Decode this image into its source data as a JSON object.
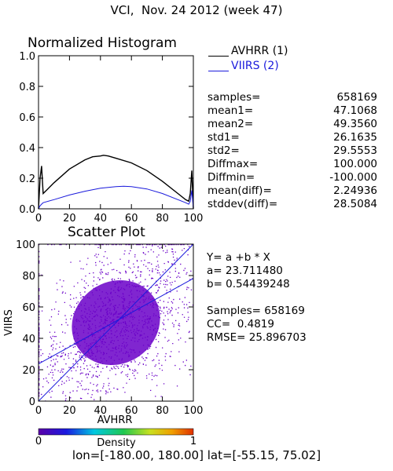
{
  "title": "VCI,  Nov. 24 2012 (week 47)",
  "histogram": {
    "title": "Normalized Histogram",
    "legend": [
      {
        "label": "AVHRR (1)",
        "color": "#000000"
      },
      {
        "label": "VIIRS (2)",
        "color": "#1a1adc"
      }
    ],
    "stats": [
      {
        "label": "samples=",
        "value": "658169"
      },
      {
        "label": "mean1=",
        "value": "47.1068"
      },
      {
        "label": "mean2=",
        "value": "49.3560"
      },
      {
        "label": "std1=",
        "value": "26.1635"
      },
      {
        "label": "std2=",
        "value": "29.5553"
      },
      {
        "label": "Diffmax=",
        "value": "100.000"
      },
      {
        "label": "Diffmin=",
        "value": "-100.000"
      },
      {
        "label": "mean(diff)=",
        "value": "2.24936"
      },
      {
        "label": "stddev(diff)=",
        "value": "28.5084"
      }
    ]
  },
  "scatter": {
    "title": "Scatter Plot",
    "regression": {
      "equation": "Y= a +b * X",
      "a": "a= 23.711480",
      "b": "b= 0.54439248",
      "samples": "Samples= 658169",
      "cc": "CC=  0.4819",
      "rmse": "RMSE= 25.896703"
    },
    "colorbar": {
      "label": "Density",
      "min": "0",
      "max": "1"
    }
  },
  "footer": "lon=[-180.00, 180.00] lat=[-55.15, 75.02]",
  "chart_data": [
    {
      "type": "line",
      "title": "Normalized Histogram",
      "xlim": [
        0,
        100
      ],
      "ylim": [
        0,
        1.0
      ],
      "xticks": [
        "0",
        "20",
        "40",
        "60",
        "80",
        "100"
      ],
      "yticks": [
        "0.0",
        "0.2",
        "0.4",
        "0.6",
        "0.8",
        "1.0"
      ],
      "series": [
        {
          "name": "AVHRR (1)",
          "color": "#000000",
          "x": [
            0,
            1,
            2,
            3,
            5,
            10,
            20,
            30,
            35,
            40,
            42,
            45,
            50,
            60,
            70,
            80,
            90,
            95,
            97,
            98,
            99,
            100
          ],
          "y": [
            0.0,
            0.2,
            0.28,
            0.1,
            0.12,
            0.17,
            0.26,
            0.32,
            0.34,
            0.345,
            0.35,
            0.345,
            0.33,
            0.3,
            0.25,
            0.18,
            0.1,
            0.06,
            0.05,
            0.1,
            0.25,
            0.0
          ]
        },
        {
          "name": "VIIRS (2)",
          "color": "#1a1adc",
          "x": [
            0,
            1,
            2,
            3,
            10,
            20,
            30,
            40,
            50,
            55,
            60,
            70,
            80,
            90,
            95,
            97,
            98,
            99,
            100
          ],
          "y": [
            0.0,
            0.02,
            0.03,
            0.04,
            0.06,
            0.09,
            0.115,
            0.135,
            0.145,
            0.147,
            0.145,
            0.13,
            0.1,
            0.06,
            0.04,
            0.03,
            0.05,
            0.12,
            0.0
          ]
        }
      ]
    },
    {
      "type": "scatter",
      "title": "Scatter Plot",
      "xlabel": "AVHRR",
      "ylabel": "VIIRS",
      "xlim": [
        0,
        100
      ],
      "ylim": [
        0,
        100
      ],
      "xticks": [
        "0",
        "20",
        "40",
        "60",
        "80",
        "100"
      ],
      "yticks": [
        "0",
        "20",
        "40",
        "60",
        "80",
        "100"
      ],
      "regression": {
        "a": 23.71148,
        "b": 0.54439248
      },
      "one_to_one_line": true,
      "point_color": "#6a00c8",
      "samples": 658169
    }
  ]
}
